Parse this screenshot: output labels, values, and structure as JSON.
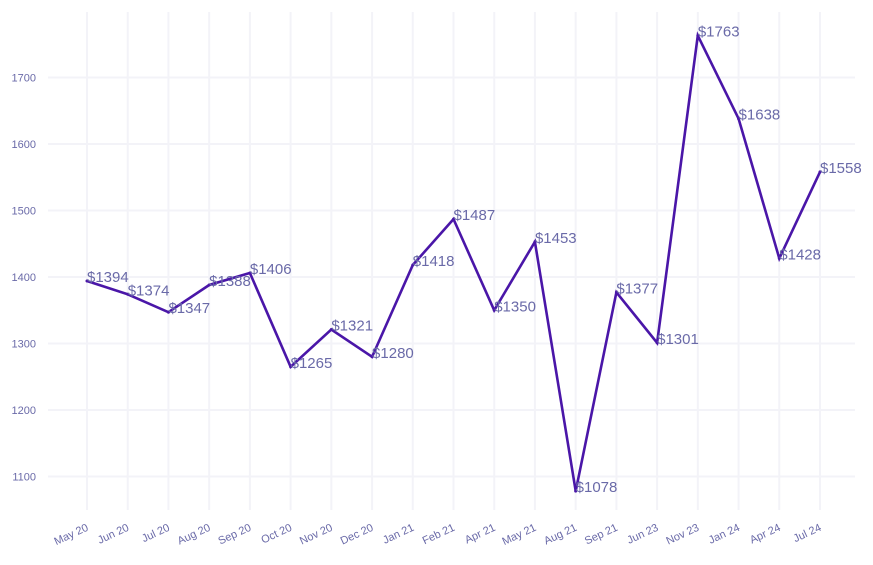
{
  "chart_data": {
    "type": "line",
    "title": "",
    "xlabel": "",
    "ylabel": "",
    "categories": [
      "May 20",
      "Jun 20",
      "Jul 20",
      "Aug 20",
      "Sep 20",
      "Oct 20",
      "Nov 20",
      "Dec 20",
      "Jan 21",
      "Feb 21",
      "Apr 21",
      "May 21",
      "Aug 21",
      "Sep 21",
      "Jun 23",
      "Nov 23",
      "Jan 24",
      "Apr 24",
      "Jul 24"
    ],
    "values": [
      1394,
      1374,
      1347,
      1388,
      1406,
      1265,
      1321,
      1280,
      1418,
      1487,
      1350,
      1453,
      1078,
      1377,
      1301,
      1763,
      1638,
      1428,
      1558
    ],
    "data_labels": [
      "$1394",
      "$1374",
      "$1347",
      "$1388",
      "$1406",
      "$1265",
      "$1321",
      "$1280",
      "$1418",
      "$1487",
      "$1350",
      "$1453",
      "$1078",
      "$1377",
      "$1301",
      "$1763",
      "$1638",
      "$1428",
      "$1558"
    ],
    "yticks": [
      1100,
      1200,
      1300,
      1400,
      1500,
      1600,
      1700
    ],
    "ylim": [
      1055,
      1800
    ],
    "grid": true,
    "legend": "none",
    "colors": {
      "line": "#4a16a8",
      "text": "#6a6aa8",
      "grid": "#f3f3f8"
    }
  }
}
